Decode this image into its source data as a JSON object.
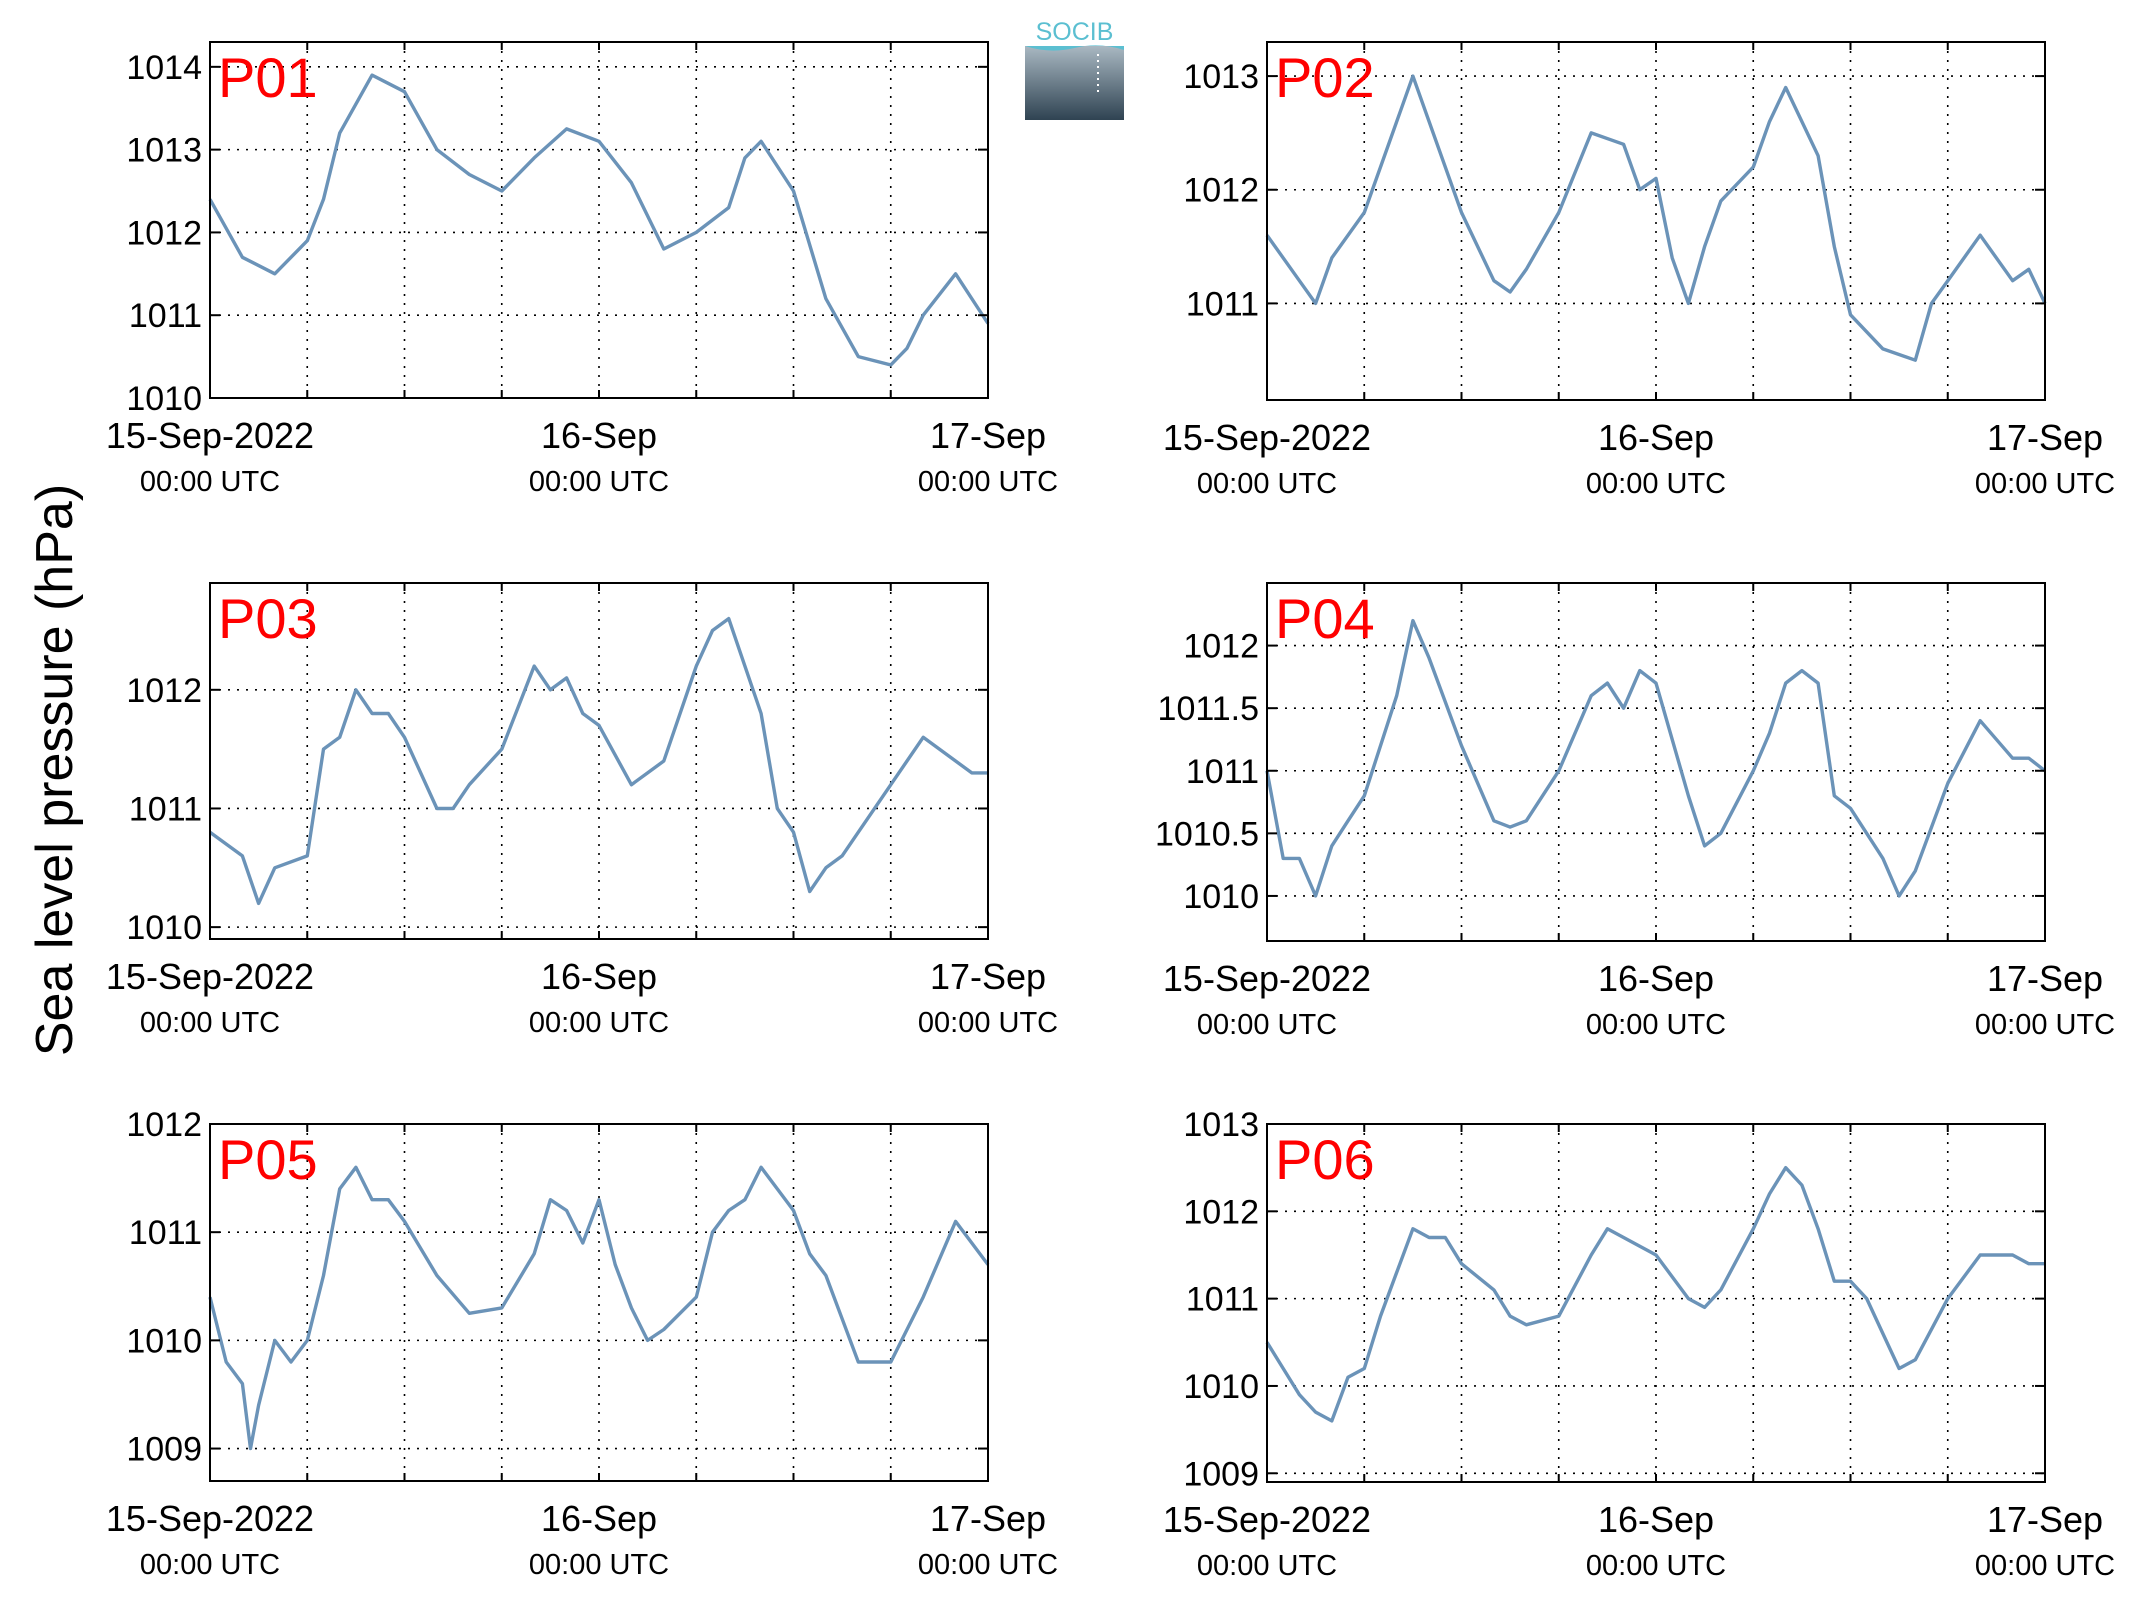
{
  "figure": {
    "ylabel": "Sea level pressure (hPa)",
    "logo_text": "SOCIB",
    "line_color": "#6b93b8",
    "label_color": "#ff0000"
  },
  "chart_data": [
    {
      "type": "line",
      "title": "P01",
      "xlim": [
        "2022-09-15 00:00",
        "2022-09-17 00:00"
      ],
      "xticks": [
        {
          "t": "15-Sep-2022",
          "s": "00:00 UTC"
        },
        {
          "t": "16-Sep",
          "s": "00:00 UTC"
        },
        {
          "t": "17-Sep",
          "s": "00:00 UTC"
        }
      ],
      "ylim": [
        1010,
        1014.3
      ],
      "yticks": [
        1010,
        1011,
        1012,
        1013,
        1014
      ],
      "grid": true,
      "series": [
        {
          "x_hours": [
            0,
            2,
            4,
            6,
            7,
            8,
            10,
            12,
            14,
            16,
            18,
            20,
            22,
            24,
            26,
            28,
            30,
            32,
            33,
            34,
            36,
            38,
            40,
            42,
            43,
            44,
            46,
            48
          ],
          "y": [
            1012.4,
            1011.7,
            1011.5,
            1011.9,
            1012.4,
            1013.2,
            1013.9,
            1013.7,
            1013.0,
            1012.7,
            1012.5,
            1012.9,
            1013.25,
            1013.1,
            1012.6,
            1011.8,
            1012.0,
            1012.3,
            1012.9,
            1013.1,
            1012.5,
            1011.2,
            1010.5,
            1010.4,
            1010.6,
            1011.0,
            1011.5,
            1010.9
          ]
        }
      ]
    },
    {
      "type": "line",
      "title": "P02",
      "xlim": [
        "2022-09-15 00:00",
        "2022-09-17 00:00"
      ],
      "xticks": [
        {
          "t": "15-Sep-2022",
          "s": "00:00 UTC"
        },
        {
          "t": "16-Sep",
          "s": "00:00 UTC"
        },
        {
          "t": "17-Sep",
          "s": "00:00 UTC"
        }
      ],
      "ylim": [
        1010.15,
        1013.3
      ],
      "yticks": [
        1011,
        1012,
        1013
      ],
      "grid": true,
      "series": [
        {
          "x_hours": [
            0,
            2,
            3,
            4,
            6,
            8,
            9,
            10,
            12,
            14,
            15,
            16,
            18,
            20,
            22,
            23,
            24,
            25,
            26,
            27,
            28,
            30,
            31,
            32,
            34,
            35,
            36,
            38,
            40,
            41,
            42,
            44,
            46,
            47,
            48
          ],
          "y": [
            1011.6,
            1011.2,
            1011.0,
            1011.4,
            1011.8,
            1012.6,
            1013.0,
            1012.6,
            1011.8,
            1011.2,
            1011.1,
            1011.3,
            1011.8,
            1012.5,
            1012.4,
            1012.0,
            1012.1,
            1011.4,
            1011.0,
            1011.5,
            1011.9,
            1012.2,
            1012.6,
            1012.9,
            1012.3,
            1011.5,
            1010.9,
            1010.6,
            1010.5,
            1011.0,
            1011.2,
            1011.6,
            1011.2,
            1011.3,
            1011.0
          ]
        }
      ]
    },
    {
      "type": "line",
      "title": "P03",
      "xlim": [
        "2022-09-15 00:00",
        "2022-09-17 00:00"
      ],
      "xticks": [
        {
          "t": "15-Sep-2022",
          "s": "00:00 UTC"
        },
        {
          "t": "16-Sep",
          "s": "00:00 UTC"
        },
        {
          "t": "17-Sep",
          "s": "00:00 UTC"
        }
      ],
      "ylim": [
        1009.9,
        1012.9
      ],
      "yticks": [
        1010,
        1011,
        1012
      ],
      "grid": true,
      "series": [
        {
          "x_hours": [
            0,
            2,
            3,
            4,
            6,
            7,
            8,
            9,
            10,
            11,
            12,
            14,
            15,
            16,
            18,
            20,
            21,
            22,
            23,
            24,
            26,
            27,
            28,
            30,
            31,
            32,
            33,
            34,
            35,
            36,
            37,
            38,
            39,
            40,
            42,
            44,
            46,
            47,
            48
          ],
          "y": [
            1010.8,
            1010.6,
            1010.2,
            1010.5,
            1010.6,
            1011.5,
            1011.6,
            1012.0,
            1011.8,
            1011.8,
            1011.6,
            1011.0,
            1011.0,
            1011.2,
            1011.5,
            1012.2,
            1012.0,
            1012.1,
            1011.8,
            1011.7,
            1011.2,
            1011.3,
            1011.4,
            1012.2,
            1012.5,
            1012.6,
            1012.2,
            1011.8,
            1011.0,
            1010.8,
            1010.3,
            1010.5,
            1010.6,
            1010.8,
            1011.2,
            1011.6,
            1011.4,
            1011.3,
            1011.3
          ]
        }
      ]
    },
    {
      "type": "line",
      "title": "P04",
      "xlim": [
        "2022-09-15 00:00",
        "2022-09-17 00:00"
      ],
      "xticks": [
        {
          "t": "15-Sep-2022",
          "s": "00:00 UTC"
        },
        {
          "t": "16-Sep",
          "s": "00:00 UTC"
        },
        {
          "t": "17-Sep",
          "s": "00:00 UTC"
        }
      ],
      "ylim": [
        1009.64,
        1012.5
      ],
      "yticks": [
        1010,
        1010.5,
        1011,
        1011.5,
        1012
      ],
      "grid": true,
      "series": [
        {
          "x_hours": [
            0,
            1,
            2,
            3,
            4,
            5,
            6,
            8,
            9,
            10,
            12,
            14,
            15,
            16,
            18,
            20,
            21,
            22,
            23,
            24,
            26,
            27,
            28,
            30,
            31,
            32,
            33,
            34,
            35,
            36,
            38,
            39,
            40,
            42,
            44,
            46,
            47,
            48
          ],
          "y": [
            1011.0,
            1010.3,
            1010.3,
            1010.0,
            1010.4,
            1010.6,
            1010.8,
            1011.6,
            1012.2,
            1011.9,
            1011.2,
            1010.6,
            1010.55,
            1010.6,
            1011.0,
            1011.6,
            1011.7,
            1011.5,
            1011.8,
            1011.7,
            1010.8,
            1010.4,
            1010.5,
            1011.0,
            1011.3,
            1011.7,
            1011.8,
            1011.7,
            1010.8,
            1010.7,
            1010.3,
            1010.0,
            1010.2,
            1010.9,
            1011.4,
            1011.1,
            1011.1,
            1011.0
          ]
        }
      ]
    },
    {
      "type": "line",
      "title": "P05",
      "xlim": [
        "2022-09-15 00:00",
        "2022-09-17 00:00"
      ],
      "xticks": [
        {
          "t": "15-Sep-2022",
          "s": "00:00 UTC"
        },
        {
          "t": "16-Sep",
          "s": "00:00 UTC"
        },
        {
          "t": "17-Sep",
          "s": "00:00 UTC"
        }
      ],
      "ylim": [
        1008.7,
        1012
      ],
      "yticks": [
        1009,
        1010,
        1011,
        1012
      ],
      "grid": true,
      "series": [
        {
          "x_hours": [
            0,
            1,
            2,
            2.5,
            3,
            4,
            5,
            6,
            7,
            8,
            9,
            10,
            11,
            12,
            14,
            16,
            18,
            20,
            21,
            22,
            23,
            24,
            25,
            26,
            27,
            28,
            30,
            31,
            32,
            33,
            34,
            35,
            36,
            37,
            38,
            39,
            40,
            42,
            44,
            46,
            47,
            48
          ],
          "y": [
            1010.4,
            1009.8,
            1009.6,
            1009.0,
            1009.4,
            1010.0,
            1009.8,
            1010.0,
            1010.6,
            1011.4,
            1011.6,
            1011.3,
            1011.3,
            1011.1,
            1010.6,
            1010.25,
            1010.3,
            1010.8,
            1011.3,
            1011.2,
            1010.9,
            1011.3,
            1010.7,
            1010.3,
            1010.0,
            1010.1,
            1010.4,
            1011.0,
            1011.2,
            1011.3,
            1011.6,
            1011.4,
            1011.2,
            1010.8,
            1010.6,
            1010.2,
            1009.8,
            1009.8,
            1010.4,
            1011.1,
            1010.9,
            1010.7
          ]
        }
      ]
    },
    {
      "type": "line",
      "title": "P06",
      "xlim": [
        "2022-09-15 00:00",
        "2022-09-17 00:00"
      ],
      "xticks": [
        {
          "t": "15-Sep-2022",
          "s": "00:00 UTC"
        },
        {
          "t": "16-Sep",
          "s": "00:00 UTC"
        },
        {
          "t": "17-Sep",
          "s": "00:00 UTC"
        }
      ],
      "ylim": [
        1008.9,
        1013
      ],
      "yticks": [
        1009,
        1010,
        1011,
        1012,
        1013
      ],
      "grid": true,
      "series": [
        {
          "x_hours": [
            0,
            1,
            2,
            3,
            4,
            5,
            6,
            7,
            8,
            9,
            10,
            11,
            12,
            14,
            15,
            16,
            18,
            20,
            21,
            22,
            23,
            24,
            26,
            27,
            28,
            30,
            31,
            32,
            33,
            34,
            35,
            36,
            37,
            38,
            39,
            40,
            42,
            44,
            46,
            47,
            48
          ],
          "y": [
            1010.5,
            1010.2,
            1009.9,
            1009.7,
            1009.6,
            1010.1,
            1010.2,
            1010.8,
            1011.3,
            1011.8,
            1011.7,
            1011.7,
            1011.4,
            1011.1,
            1010.8,
            1010.7,
            1010.8,
            1011.5,
            1011.8,
            1011.7,
            1011.6,
            1011.5,
            1011.0,
            1010.9,
            1011.1,
            1011.8,
            1012.2,
            1012.5,
            1012.3,
            1011.8,
            1011.2,
            1011.2,
            1011.0,
            1010.6,
            1010.2,
            1010.3,
            1011.0,
            1011.5,
            1011.5,
            1011.4,
            1011.4
          ]
        }
      ]
    }
  ]
}
